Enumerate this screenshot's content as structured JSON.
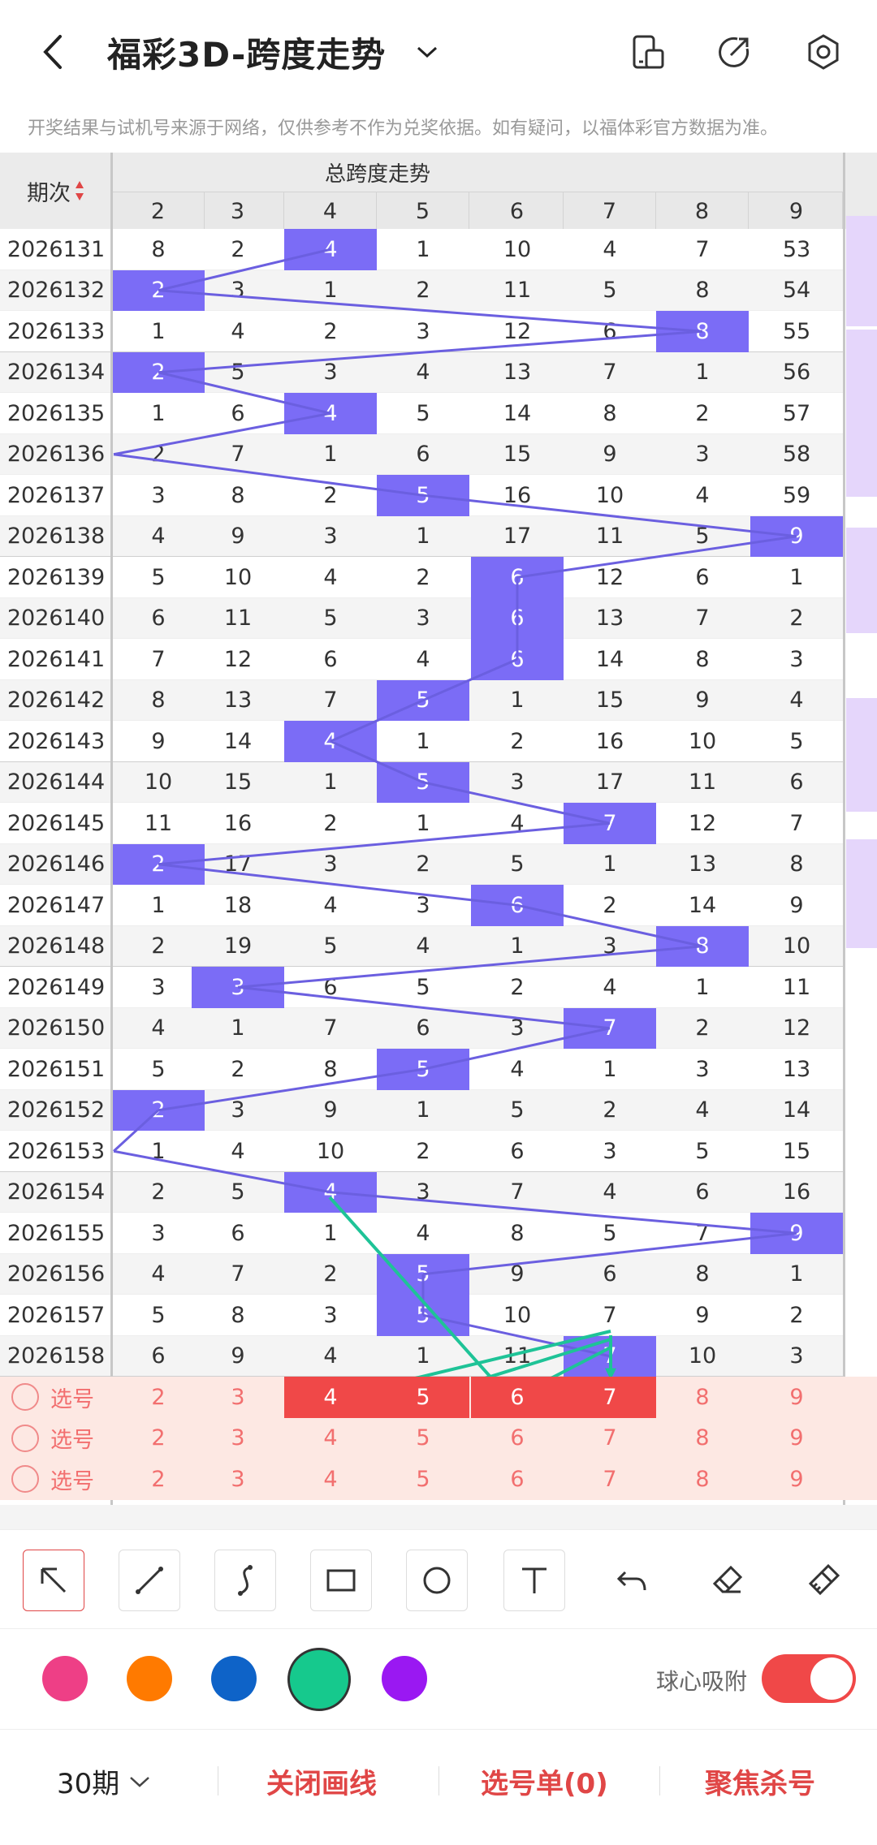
{
  "header": {
    "title": "福彩3D-跨度走势",
    "icons": [
      "back-arrow-icon",
      "chevron-down-icon",
      "layout-icon",
      "share-icon",
      "settings-icon"
    ]
  },
  "notice": "开奖结果与试机号来源于网络，仅供参考不作为兑奖依据。如有疑问，以福体彩官方数据为准。",
  "table": {
    "period_header": "期次",
    "group_header": "总跨度走势",
    "columns": [
      "2",
      "3",
      "4",
      "5",
      "6",
      "7",
      "8",
      "9"
    ],
    "rows": [
      {
        "period": "2026131",
        "values": [
          "8",
          "2",
          "4",
          "1",
          "10",
          "4",
          "7",
          "53"
        ],
        "hit": 2
      },
      {
        "period": "2026132",
        "values": [
          "2",
          "3",
          "1",
          "2",
          "11",
          "5",
          "8",
          "54"
        ],
        "hit": 0
      },
      {
        "period": "2026133",
        "values": [
          "1",
          "4",
          "2",
          "3",
          "12",
          "6",
          "8",
          "55"
        ],
        "hit": 6
      },
      {
        "period": "2026134",
        "values": [
          "2",
          "5",
          "3",
          "4",
          "13",
          "7",
          "1",
          "56"
        ],
        "hit": 0
      },
      {
        "period": "2026135",
        "values": [
          "1",
          "6",
          "4",
          "5",
          "14",
          "8",
          "2",
          "57"
        ],
        "hit": 2
      },
      {
        "period": "2026136",
        "values": [
          "2",
          "7",
          "1",
          "6",
          "15",
          "9",
          "3",
          "58"
        ],
        "hit": -1
      },
      {
        "period": "2026137",
        "values": [
          "3",
          "8",
          "2",
          "5",
          "16",
          "10",
          "4",
          "59"
        ],
        "hit": 3
      },
      {
        "period": "2026138",
        "values": [
          "4",
          "9",
          "3",
          "1",
          "17",
          "11",
          "5",
          "9"
        ],
        "hit": 7
      },
      {
        "period": "2026139",
        "values": [
          "5",
          "10",
          "4",
          "2",
          "6",
          "12",
          "6",
          "1"
        ],
        "hit": 4
      },
      {
        "period": "2026140",
        "values": [
          "6",
          "11",
          "5",
          "3",
          "6",
          "13",
          "7",
          "2"
        ],
        "hit": 4
      },
      {
        "period": "2026141",
        "values": [
          "7",
          "12",
          "6",
          "4",
          "6",
          "14",
          "8",
          "3"
        ],
        "hit": 4
      },
      {
        "period": "2026142",
        "values": [
          "8",
          "13",
          "7",
          "5",
          "1",
          "15",
          "9",
          "4"
        ],
        "hit": 3
      },
      {
        "period": "2026143",
        "values": [
          "9",
          "14",
          "4",
          "1",
          "2",
          "16",
          "10",
          "5"
        ],
        "hit": 2
      },
      {
        "period": "2026144",
        "values": [
          "10",
          "15",
          "1",
          "5",
          "3",
          "17",
          "11",
          "6"
        ],
        "hit": 3
      },
      {
        "period": "2026145",
        "values": [
          "11",
          "16",
          "2",
          "1",
          "4",
          "7",
          "12",
          "7"
        ],
        "hit": 5
      },
      {
        "period": "2026146",
        "values": [
          "2",
          "17",
          "3",
          "2",
          "5",
          "1",
          "13",
          "8"
        ],
        "hit": 0
      },
      {
        "period": "2026147",
        "values": [
          "1",
          "18",
          "4",
          "3",
          "6",
          "2",
          "14",
          "9"
        ],
        "hit": 4
      },
      {
        "period": "2026148",
        "values": [
          "2",
          "19",
          "5",
          "4",
          "1",
          "3",
          "8",
          "10"
        ],
        "hit": 6
      },
      {
        "period": "2026149",
        "values": [
          "3",
          "3",
          "6",
          "5",
          "2",
          "4",
          "1",
          "11"
        ],
        "hit": 1
      },
      {
        "period": "2026150",
        "values": [
          "4",
          "1",
          "7",
          "6",
          "3",
          "7",
          "2",
          "12"
        ],
        "hit": 5
      },
      {
        "period": "2026151",
        "values": [
          "5",
          "2",
          "8",
          "5",
          "4",
          "1",
          "3",
          "13"
        ],
        "hit": 3
      },
      {
        "period": "2026152",
        "values": [
          "2",
          "3",
          "9",
          "1",
          "5",
          "2",
          "4",
          "14"
        ],
        "hit": 0
      },
      {
        "period": "2026153",
        "values": [
          "1",
          "4",
          "10",
          "2",
          "6",
          "3",
          "5",
          "15"
        ],
        "hit": -1
      },
      {
        "period": "2026154",
        "values": [
          "2",
          "5",
          "4",
          "3",
          "7",
          "4",
          "6",
          "16"
        ],
        "hit": 2
      },
      {
        "period": "2026155",
        "values": [
          "3",
          "6",
          "1",
          "4",
          "8",
          "5",
          "7",
          "9"
        ],
        "hit": 7
      },
      {
        "period": "2026156",
        "values": [
          "4",
          "7",
          "2",
          "5",
          "9",
          "6",
          "8",
          "1"
        ],
        "hit": 3
      },
      {
        "period": "2026157",
        "values": [
          "5",
          "8",
          "3",
          "5",
          "10",
          "7",
          "9",
          "2"
        ],
        "hit": 3
      },
      {
        "period": "2026158",
        "values": [
          "6",
          "9",
          "4",
          "1",
          "11",
          "7",
          "10",
          "3"
        ],
        "hit": 5
      }
    ],
    "pick_label": "选号",
    "pick_rows": [
      {
        "selected": [
          2,
          3,
          4,
          5
        ]
      },
      {
        "selected": []
      },
      {
        "selected": []
      }
    ]
  },
  "palette": {
    "colors": [
      "#ee3f86",
      "#ff7a00",
      "#0e63c8",
      "#16c98d",
      "#9a18f2"
    ],
    "selected": 3,
    "snap_label": "球心吸附",
    "snap_on": true
  },
  "bottom": {
    "periods": "30期",
    "close_draw": "关闭画线",
    "selection": "选号单(0)",
    "focus_kill": "聚焦杀号"
  },
  "colors": {
    "highlight": "#7b6cf6",
    "line": "#6b5fe0",
    "pick_bg": "#fde8e3",
    "pick_text": "#f26f6f",
    "accent": "#e04646",
    "draw": "#1ec397"
  }
}
